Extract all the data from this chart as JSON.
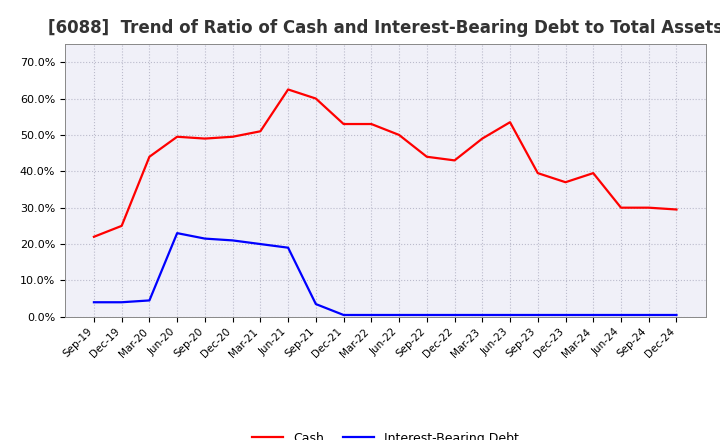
{
  "title": "[6088]  Trend of Ratio of Cash and Interest-Bearing Debt to Total Assets",
  "x_labels": [
    "Sep-19",
    "Dec-19",
    "Mar-20",
    "Jun-20",
    "Sep-20",
    "Dec-20",
    "Mar-21",
    "Jun-21",
    "Sep-21",
    "Dec-21",
    "Mar-22",
    "Jun-22",
    "Sep-22",
    "Dec-22",
    "Mar-23",
    "Jun-23",
    "Sep-23",
    "Dec-23",
    "Mar-24",
    "Jun-24",
    "Sep-24",
    "Dec-24"
  ],
  "cash": [
    22.0,
    25.0,
    44.0,
    49.5,
    49.0,
    49.5,
    51.0,
    62.5,
    60.0,
    53.0,
    53.0,
    50.0,
    44.0,
    43.0,
    49.0,
    53.5,
    39.5,
    37.0,
    39.5,
    30.0,
    30.0,
    29.5
  ],
  "ibd": [
    4.0,
    4.0,
    4.5,
    23.0,
    21.5,
    21.0,
    20.0,
    19.0,
    3.5,
    0.5,
    0.5,
    0.5,
    0.5,
    0.5,
    0.5,
    0.5,
    0.5,
    0.5,
    0.5,
    0.5,
    0.5,
    0.5
  ],
  "cash_color": "#FF0000",
  "ibd_color": "#0000FF",
  "ylim": [
    0,
    75
  ],
  "yticks": [
    0,
    10,
    20,
    30,
    40,
    50,
    60,
    70
  ],
  "ytick_labels": [
    "0.0%",
    "10.0%",
    "20.0%",
    "30.0%",
    "40.0%",
    "50.0%",
    "60.0%",
    "70.0%"
  ],
  "bg_color": "#FFFFFF",
  "plot_bg_color": "#F0F0F8",
  "grid_color": "#BBBBCC",
  "title_fontsize": 12,
  "legend_cash": "Cash",
  "legend_ibd": "Interest-Bearing Debt",
  "line_width": 1.6
}
